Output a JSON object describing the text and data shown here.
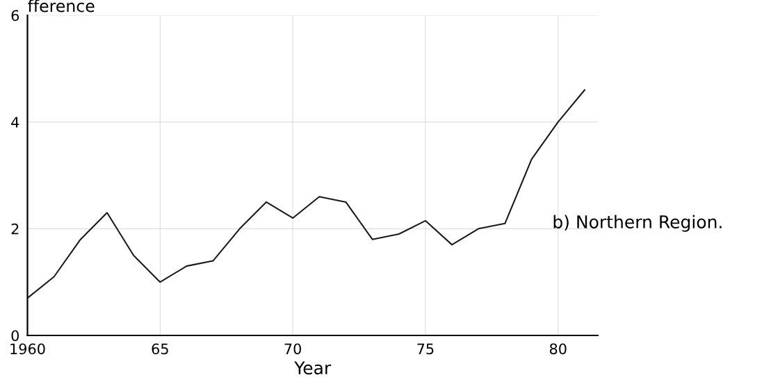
{
  "chart_data": {
    "type": "line",
    "ylabel": "fference",
    "xlabel": "Year",
    "x": [
      1960,
      1961,
      1962,
      1963,
      1964,
      1965,
      1966,
      1967,
      1968,
      1969,
      1970,
      1971,
      1972,
      1973,
      1974,
      1975,
      1976,
      1977,
      1978,
      1979,
      1980,
      1981
    ],
    "series": [
      {
        "color": "#1a1a1a",
        "values": [
          0.7,
          1.1,
          1.8,
          2.3,
          1.5,
          1.0,
          1.3,
          1.4,
          2.0,
          2.5,
          2.2,
          2.6,
          2.5,
          1.8,
          1.9,
          2.15,
          1.7,
          2.0,
          2.1,
          3.3,
          4.0,
          4.6
        ]
      }
    ],
    "xlim": [
      1960,
      1981.5
    ],
    "xticks": [
      {
        "value": 1960,
        "label": "1960"
      },
      {
        "value": 1965,
        "label": "65"
      },
      {
        "value": 1970,
        "label": "70"
      },
      {
        "value": 1975,
        "label": "75"
      },
      {
        "value": 1980,
        "label": "80"
      }
    ],
    "ylim": [
      0,
      6
    ],
    "yticks": [
      0,
      2,
      4,
      6
    ],
    "annotations": [
      "b) Northern Region."
    ],
    "grid": true,
    "marker": "none",
    "line_style": "solid"
  }
}
